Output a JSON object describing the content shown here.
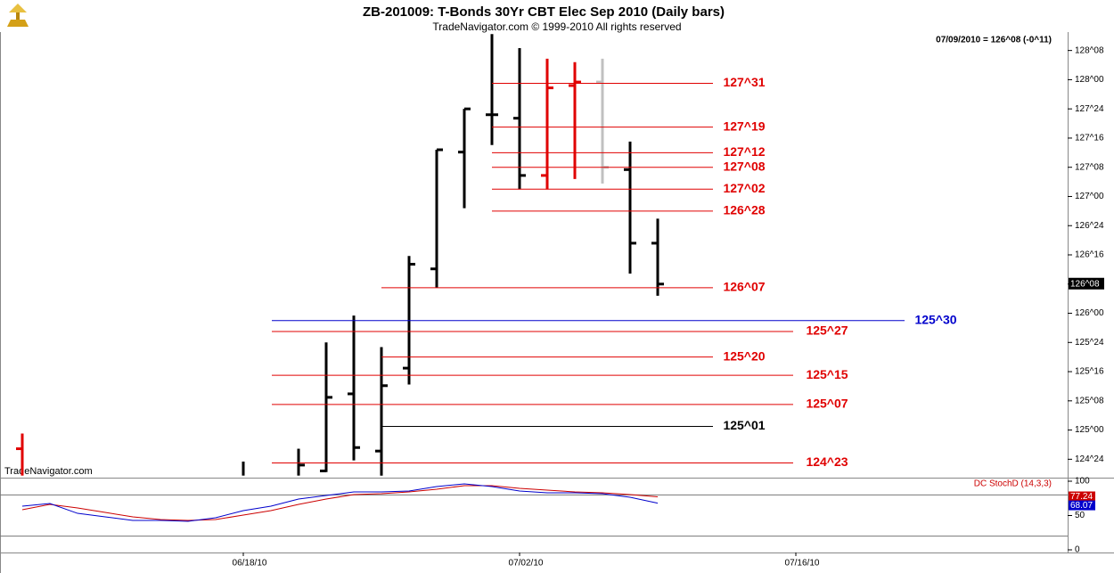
{
  "chart_data": [
    {
      "type": "ohlc",
      "title": "ZB-201009:  T-Bonds 30Yr CBT Elec Sep 2010  (Daily bars)",
      "subtitle": "TradeNavigator.com © 1999-2010 All rights reserved",
      "info": "07/09/2010 = 126^08 (-0^11)",
      "watermark": "TradeNavigator.com",
      "last_value": 126.25,
      "last_label": "126^08",
      "categories": [
        null,
        null,
        null,
        null,
        null,
        null,
        null,
        null,
        "06/18/10",
        null,
        null,
        null,
        null,
        null,
        null,
        null,
        null,
        null,
        "07/02/10",
        null,
        null,
        null,
        null,
        null,
        null,
        null,
        null,
        null,
        "07/16/10",
        null,
        null,
        null,
        null,
        null,
        null,
        null,
        null,
        null
      ],
      "open": [
        124.84,
        null,
        null,
        null,
        null,
        null,
        null,
        null,
        null,
        null,
        null,
        124.65,
        125.31,
        124.82,
        125.53,
        126.38,
        127.38,
        127.7,
        127.67,
        127.18,
        127.95,
        127.98,
        127.23,
        126.6,
        null,
        null,
        null,
        null,
        null,
        null,
        null,
        null,
        null,
        null,
        null,
        null,
        null,
        null
      ],
      "high": [
        124.97,
        null,
        null,
        null,
        null,
        null,
        null,
        null,
        124.73,
        null,
        124.84,
        125.75,
        125.98,
        125.71,
        126.49,
        127.4,
        127.75,
        128.39,
        128.27,
        128.18,
        128.15,
        128.18,
        127.47,
        126.81,
        null,
        null,
        null,
        null,
        null,
        null,
        null,
        null,
        null,
        null,
        null,
        null,
        null,
        null
      ],
      "low": [
        124.61,
        null,
        null,
        null,
        null,
        null,
        null,
        null,
        124.61,
        null,
        124.61,
        124.64,
        124.74,
        124.61,
        125.39,
        126.22,
        126.9,
        127.44,
        127.06,
        127.06,
        127.15,
        127.11,
        126.34,
        126.15,
        null,
        null,
        null,
        null,
        null,
        null,
        null,
        null,
        null,
        null,
        null,
        null,
        null,
        null
      ],
      "close": [
        null,
        null,
        null,
        null,
        null,
        null,
        null,
        null,
        null,
        null,
        124.7,
        125.28,
        124.85,
        125.38,
        126.42,
        127.4,
        127.75,
        127.7,
        127.18,
        127.93,
        127.98,
        127.25,
        126.6,
        126.25,
        null,
        null,
        null,
        null,
        null,
        null,
        null,
        null,
        null,
        null,
        null,
        null,
        null,
        null
      ],
      "bar_colors": [
        "#e00000",
        null,
        null,
        null,
        null,
        null,
        null,
        null,
        "#000000",
        null,
        "#000000",
        "#000000",
        "#000000",
        "#000000",
        "#000000",
        "#000000",
        "#000000",
        "#000000",
        "#000000",
        "#e00000",
        "#e00000",
        "#c0c0c0",
        "#000000",
        "#000000",
        null,
        null,
        null,
        null,
        null,
        null,
        null,
        null,
        null,
        null,
        null,
        null,
        null,
        null
      ],
      "levels": [
        {
          "label": "127^31",
          "value": 127.96875,
          "color": "#e00000"
        },
        {
          "label": "127^19",
          "value": 127.59375,
          "color": "#e00000"
        },
        {
          "label": "127^12",
          "value": 127.375,
          "color": "#e00000"
        },
        {
          "label": "127^08",
          "value": 127.25,
          "color": "#e00000"
        },
        {
          "label": "127^02",
          "value": 127.0625,
          "color": "#e00000"
        },
        {
          "label": "126^28",
          "value": 126.875,
          "color": "#e00000"
        },
        {
          "label": "126^07",
          "value": 126.21875,
          "color": "#e00000"
        },
        {
          "label": "125^30",
          "value": 125.9375,
          "color": "#0000cc"
        },
        {
          "label": "125^27",
          "value": 125.84375,
          "color": "#e00000"
        },
        {
          "label": "125^20",
          "value": 125.625,
          "color": "#e00000"
        },
        {
          "label": "125^15",
          "value": 125.46875,
          "color": "#e00000"
        },
        {
          "label": "125^07",
          "value": 125.21875,
          "color": "#e00000"
        },
        {
          "label": "125^01",
          "value": 125.03125,
          "color": "#000000"
        },
        {
          "label": "124^23",
          "value": 124.71875,
          "color": "#e00000"
        }
      ],
      "ylim": [
        124.6,
        128.4
      ],
      "yticks": [
        {
          "value": 124.75,
          "label": "124^24"
        },
        {
          "value": 125.0,
          "label": "125^00"
        },
        {
          "value": 125.25,
          "label": "125^08"
        },
        {
          "value": 125.5,
          "label": "125^16"
        },
        {
          "value": 125.75,
          "label": "125^24"
        },
        {
          "value": 126.0,
          "label": "126^00"
        },
        {
          "value": 126.25,
          "label": "126^08"
        },
        {
          "value": 126.5,
          "label": "126^16"
        },
        {
          "value": 126.75,
          "label": "126^24"
        },
        {
          "value": 127.0,
          "label": "127^00"
        },
        {
          "value": 127.25,
          "label": "127^08"
        },
        {
          "value": 127.5,
          "label": "127^16"
        },
        {
          "value": 127.75,
          "label": "127^24"
        },
        {
          "value": 128.0,
          "label": "128^00"
        },
        {
          "value": 128.25,
          "label": "128^08"
        }
      ]
    },
    {
      "type": "line",
      "title": "DC StochD (14,3,3)",
      "series": [
        {
          "color": "#cc0000",
          "values": [
            58.4,
            66.2,
            61.0,
            54.5,
            48.1,
            44.2,
            42.9,
            44.2,
            50.6,
            57.1,
            66.2,
            74.0,
            80.5,
            81.8,
            84.4,
            88.3,
            93.5,
            93.5,
            89.6,
            87.0,
            84.4,
            83.1,
            80.5,
            77.24,
            null,
            null,
            null,
            null,
            null,
            null,
            null,
            null,
            null,
            null,
            null,
            null,
            null,
            null
          ]
        },
        {
          "color": "#0000cc",
          "values": [
            63.6,
            67.5,
            53.2,
            48.1,
            42.9,
            42.9,
            41.6,
            46.8,
            57.1,
            63.6,
            74.0,
            79.2,
            84.4,
            84.4,
            85.7,
            92.2,
            96.1,
            92.2,
            85.7,
            83.1,
            83.1,
            81.8,
            76.6,
            68.07,
            null,
            null,
            null,
            null,
            null,
            null,
            null,
            null,
            null,
            null,
            null,
            null,
            null,
            null
          ]
        }
      ],
      "levels": [
        80,
        20
      ],
      "ylim": [
        0,
        100
      ],
      "yticks": [
        0,
        50,
        100
      ]
    }
  ]
}
